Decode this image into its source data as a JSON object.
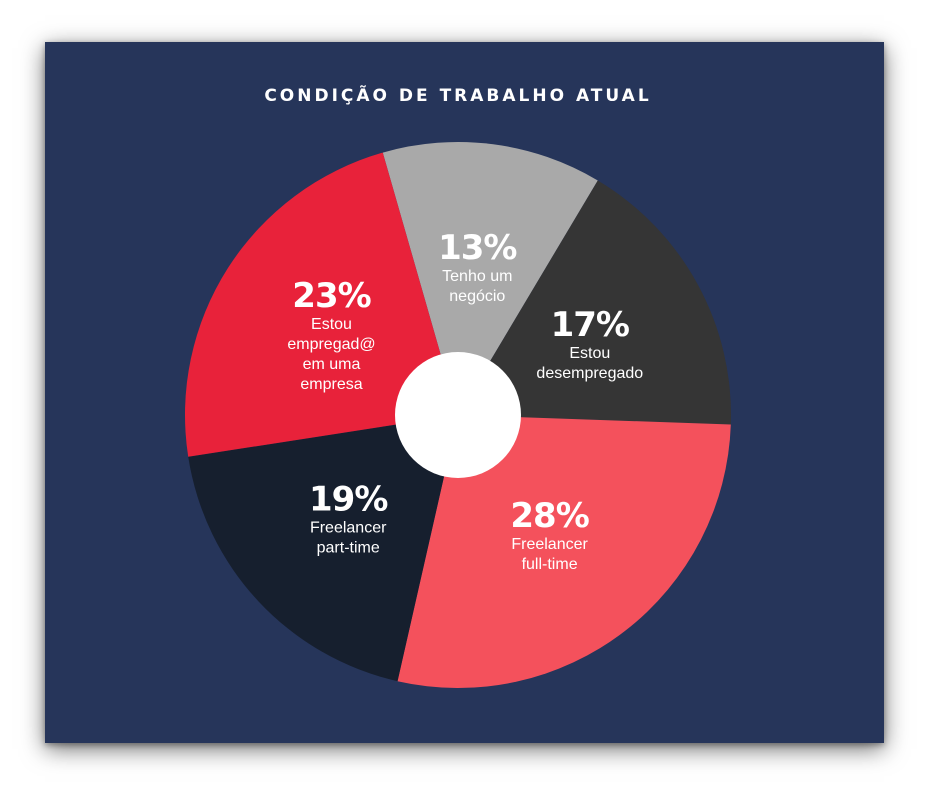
{
  "chart_data": {
    "type": "pie",
    "variant": "donut",
    "title": "CONDIÇÃO DE TRABALHO ATUAL",
    "slices": [
      {
        "value": 13,
        "pct_label": "13%",
        "label_lines": [
          "Tenho um",
          "negócio"
        ],
        "color": "#a9a9a9"
      },
      {
        "value": 17,
        "pct_label": "17%",
        "label_lines": [
          "Estou",
          "desempregado"
        ],
        "color": "#353535"
      },
      {
        "value": 28,
        "pct_label": "28%",
        "label_lines": [
          "Freelancer",
          "full-time"
        ],
        "color": "#f4515c"
      },
      {
        "value": 19,
        "pct_label": "19%",
        "label_lines": [
          "Freelancer",
          "part-time"
        ],
        "color": "#161f2e"
      },
      {
        "value": 23,
        "pct_label": "23%",
        "label_lines": [
          "Estou",
          "empregad@",
          "em uma",
          "empresa"
        ],
        "color": "#e8223a"
      }
    ],
    "legend": "none",
    "center_hole_color": "#ffffff"
  },
  "colors": {
    "background": "#26355a",
    "text": "#ffffff"
  }
}
